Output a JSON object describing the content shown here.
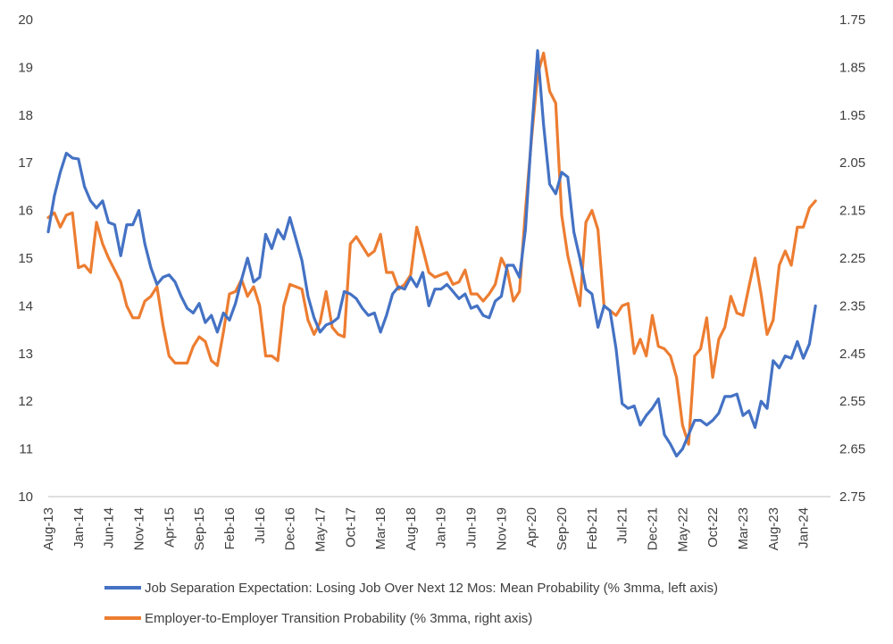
{
  "colors": {
    "series1": "#4472C4",
    "series2": "#ED7D31",
    "axis": "#BFBFBF",
    "text": "#404040"
  },
  "chart_data": {
    "type": "line",
    "title": "",
    "grid": false,
    "legend_position": "bottom",
    "x_tick_labels": [
      "Aug-13",
      "Jan-14",
      "Jun-14",
      "Nov-14",
      "Apr-15",
      "Sep-15",
      "Feb-16",
      "Jul-16",
      "Dec-16",
      "May-17",
      "Oct-17",
      "Mar-18",
      "Aug-18",
      "Jan-19",
      "Jun-19",
      "Nov-19",
      "Apr-20",
      "Sep-20",
      "Feb-21",
      "Jul-21",
      "Dec-21",
      "May-22",
      "Oct-22",
      "Mar-23",
      "Aug-23",
      "Jan-24"
    ],
    "x_start": "Aug-13",
    "x_step_months": 1,
    "left_axis": {
      "min": 10,
      "max": 20,
      "step": 1,
      "tick_labels": [
        "10",
        "11",
        "12",
        "13",
        "14",
        "15",
        "16",
        "17",
        "18",
        "19",
        "20"
      ]
    },
    "right_axis": {
      "min": 1.75,
      "max": 2.75,
      "reversed": true,
      "tick_labels": [
        "1.75",
        "1.85",
        "1.95",
        "2.05",
        "2.15",
        "2.25",
        "2.35",
        "2.45",
        "2.55",
        "2.65",
        "2.75"
      ]
    },
    "series": [
      {
        "name": "Job Separation Expectation: Losing Job Over Next 12 Mos: Mean Probability (% 3mma, left axis)",
        "axis": "left",
        "values": [
          15.55,
          16.3,
          16.8,
          17.2,
          17.1,
          17.08,
          16.5,
          16.2,
          16.05,
          16.2,
          15.75,
          15.7,
          15.05,
          15.7,
          15.7,
          16.0,
          15.3,
          14.8,
          14.45,
          14.6,
          14.65,
          14.5,
          14.2,
          13.95,
          13.85,
          14.05,
          13.65,
          13.8,
          13.45,
          13.85,
          13.7,
          14.05,
          14.55,
          15.0,
          14.5,
          14.6,
          15.5,
          15.2,
          15.6,
          15.4,
          15.85,
          15.4,
          14.95,
          14.2,
          13.75,
          13.45,
          13.6,
          13.65,
          13.75,
          14.3,
          14.25,
          14.15,
          13.95,
          13.8,
          13.85,
          13.45,
          13.8,
          14.25,
          14.4,
          14.35,
          14.6,
          14.4,
          14.7,
          14.0,
          14.35,
          14.35,
          14.45,
          14.3,
          14.15,
          14.25,
          13.95,
          14.0,
          13.8,
          13.75,
          14.1,
          14.2,
          14.85,
          14.85,
          14.6,
          15.6,
          17.6,
          19.35,
          17.8,
          16.55,
          16.35,
          16.8,
          16.7,
          15.55,
          15.0,
          14.35,
          14.25,
          13.55,
          14.0,
          13.9,
          13.1,
          11.95,
          11.85,
          11.9,
          11.5,
          11.7,
          11.85,
          12.05,
          11.3,
          11.1,
          10.85,
          11.0,
          11.3,
          11.6,
          11.6,
          11.5,
          11.6,
          11.75,
          12.1,
          12.1,
          12.15,
          11.7,
          11.8,
          11.45,
          12.0,
          11.85,
          12.85,
          12.7,
          12.95,
          12.9,
          13.25,
          12.9,
          13.2,
          14.0
        ]
      },
      {
        "name": "Employer-to-Employer Transition Probability (% 3mma, right axis)",
        "axis": "right",
        "values": [
          2.165,
          2.155,
          2.185,
          2.16,
          2.155,
          2.27,
          2.265,
          2.28,
          2.175,
          2.22,
          2.25,
          2.275,
          2.3,
          2.35,
          2.375,
          2.375,
          2.34,
          2.33,
          2.31,
          2.39,
          2.455,
          2.47,
          2.47,
          2.47,
          2.435,
          2.415,
          2.425,
          2.465,
          2.475,
          2.405,
          2.325,
          2.32,
          2.295,
          2.33,
          2.31,
          2.35,
          2.455,
          2.455,
          2.465,
          2.35,
          2.305,
          2.31,
          2.315,
          2.38,
          2.41,
          2.385,
          2.32,
          2.395,
          2.41,
          2.415,
          2.22,
          2.205,
          2.225,
          2.245,
          2.235,
          2.2,
          2.28,
          2.28,
          2.315,
          2.305,
          2.285,
          2.185,
          2.23,
          2.28,
          2.29,
          2.285,
          2.28,
          2.305,
          2.3,
          2.275,
          2.325,
          2.325,
          2.34,
          2.325,
          2.305,
          2.25,
          2.275,
          2.34,
          2.32,
          2.15,
          2.0,
          1.865,
          1.82,
          1.9,
          1.925,
          2.16,
          2.245,
          2.3,
          2.35,
          2.175,
          2.15,
          2.19,
          2.35,
          2.36,
          2.37,
          2.35,
          2.345,
          2.45,
          2.42,
          2.455,
          2.37,
          2.435,
          2.44,
          2.455,
          2.5,
          2.6,
          2.64,
          2.455,
          2.44,
          2.375,
          2.5,
          2.42,
          2.395,
          2.33,
          2.365,
          2.37,
          2.31,
          2.25,
          2.325,
          2.41,
          2.38,
          2.265,
          2.235,
          2.265,
          2.185,
          2.185,
          2.145,
          2.13
        ]
      }
    ]
  }
}
